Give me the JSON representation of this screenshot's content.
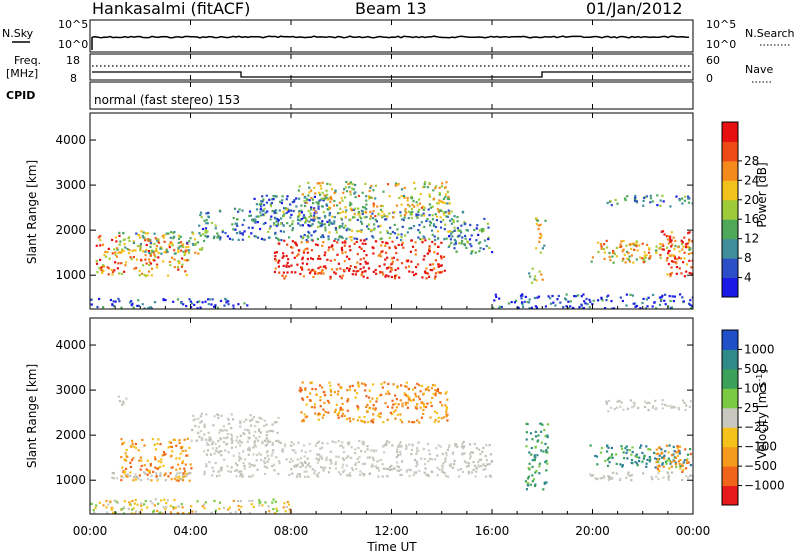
{
  "header": {
    "station": "Hankasalmi (fitACF)",
    "beam": "Beam 13",
    "date": "01/Jan/2012"
  },
  "mini_panels": {
    "nsky_label": "N.Sky",
    "nsearch_label": "N.Search",
    "nsky_ticks": [
      "10^5",
      "10^0"
    ],
    "nsearch_ticks": [
      "10^5",
      "10^0"
    ],
    "freq_label_top": "Freq.",
    "freq_label_unit": "[MHz]",
    "freq_ticks": [
      "18",
      "8"
    ],
    "nave_label": "Nave",
    "nave_ticks": [
      "60",
      "0"
    ],
    "cpid_label": "CPID",
    "cpid_text": "normal (fast stereo) 153"
  },
  "chart_data": [
    {
      "type": "heatmap",
      "name": "power",
      "ylabel": "Slant Range [km]",
      "ylim": [
        250,
        4600
      ],
      "yticks": [
        1000,
        2000,
        3000,
        4000
      ],
      "xlim": [
        0,
        24
      ],
      "colorbar": {
        "label": "Power [dB]",
        "ticks": [
          "4",
          "8",
          "12",
          "16",
          "20",
          "24",
          "28"
        ],
        "colors": [
          "#1a1ae6",
          "#2c4fc7",
          "#3f8e9a",
          "#4fa85a",
          "#9ecb3a",
          "#f2c21c",
          "#f58a1c",
          "#ee4a16",
          "#e61010"
        ]
      },
      "regions": [
        {
          "t": [
            0.2,
            3.9
          ],
          "r": [
            1000,
            1900
          ],
          "level": 0.7
        },
        {
          "t": [
            1.0,
            4.7
          ],
          "r": [
            1500,
            2000
          ],
          "level": 0.45
        },
        {
          "t": [
            0.0,
            6.5
          ],
          "r": [
            280,
            500
          ],
          "level": 0.15
        },
        {
          "t": [
            4.3,
            7.5
          ],
          "r": [
            1800,
            2500
          ],
          "level": 0.25
        },
        {
          "t": [
            6.5,
            9.5
          ],
          "r": [
            2100,
            2800
          ],
          "level": 0.2
        },
        {
          "t": [
            7.3,
            14.1
          ],
          "r": [
            950,
            1800
          ],
          "level": 0.95
        },
        {
          "t": [
            7.3,
            14.9
          ],
          "r": [
            1800,
            2500
          ],
          "level": 0.35
        },
        {
          "t": [
            8.2,
            14.3
          ],
          "r": [
            2300,
            3100
          ],
          "level": 0.55
        },
        {
          "t": [
            14.2,
            16.0
          ],
          "r": [
            1500,
            2300
          ],
          "level": 0.3
        },
        {
          "t": [
            17.4,
            18.0
          ],
          "r": [
            850,
            1200
          ],
          "level": 0.55
        },
        {
          "t": [
            17.7,
            18.1
          ],
          "r": [
            1500,
            2300
          ],
          "level": 0.5
        },
        {
          "t": [
            19.8,
            24.0
          ],
          "r": [
            1300,
            1800
          ],
          "level": 0.6
        },
        {
          "t": [
            22.7,
            24.0
          ],
          "r": [
            1000,
            2000
          ],
          "level": 0.9
        },
        {
          "t": [
            20.5,
            24.0
          ],
          "r": [
            2550,
            2800
          ],
          "level": 0.3
        },
        {
          "t": [
            16.0,
            24.0
          ],
          "r": [
            280,
            600
          ],
          "level": 0.15
        }
      ]
    },
    {
      "type": "heatmap",
      "name": "velocity",
      "ylabel": "Slant Range [km]",
      "ylim": [
        250,
        4600
      ],
      "yticks": [
        1000,
        2000,
        3000,
        4000
      ],
      "xlim": [
        0,
        24
      ],
      "xticks": [
        "00:00",
        "04:00",
        "08:00",
        "12:00",
        "16:00",
        "20:00",
        "00:00"
      ],
      "xlabel": "Time UT",
      "colorbar": {
        "label": "Velocity [m s^-1]",
        "ticks": [
          "1000",
          "500",
          "100",
          "25",
          "−25",
          "−100",
          "−500",
          "−1000"
        ],
        "colors": [
          "#2050c8",
          "#2f8a8a",
          "#3aa05a",
          "#7ac943",
          "#c8c8c0",
          "#f5c21c",
          "#f59a1c",
          "#f0641c",
          "#e61a1a"
        ]
      },
      "regions": [
        {
          "t": [
            1.2,
            4.0
          ],
          "r": [
            1000,
            1950
          ],
          "v": "orange"
        },
        {
          "t": [
            0.8,
            4.0
          ],
          "r": [
            1000,
            1200
          ],
          "v": "gray"
        },
        {
          "t": [
            4.0,
            7.5
          ],
          "r": [
            1800,
            2500
          ],
          "v": "gray"
        },
        {
          "t": [
            4.5,
            16.0
          ],
          "r": [
            1100,
            1900
          ],
          "v": "gray"
        },
        {
          "t": [
            8.3,
            14.2
          ],
          "r": [
            2300,
            3200
          ],
          "v": "orange"
        },
        {
          "t": [
            0.0,
            8.0
          ],
          "r": [
            280,
            600
          ],
          "v": "orange-low"
        },
        {
          "t": [
            17.3,
            18.2
          ],
          "r": [
            800,
            2300
          ],
          "v": "green"
        },
        {
          "t": [
            19.8,
            24.0
          ],
          "r": [
            1300,
            1800
          ],
          "v": "teal"
        },
        {
          "t": [
            22.5,
            24.0
          ],
          "r": [
            1200,
            1800
          ],
          "v": "orange"
        },
        {
          "t": [
            19.8,
            24.0
          ],
          "r": [
            1000,
            1200
          ],
          "v": "gray"
        },
        {
          "t": [
            20.5,
            24.0
          ],
          "r": [
            2550,
            2800
          ],
          "v": "gray"
        },
        {
          "t": [
            1.0,
            1.8
          ],
          "r": [
            2700,
            2900
          ],
          "v": "gray"
        }
      ]
    }
  ]
}
